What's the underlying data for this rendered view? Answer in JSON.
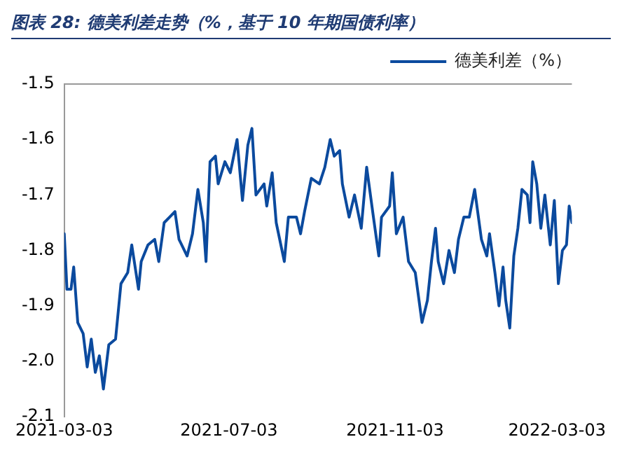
{
  "chart_data": {
    "type": "line",
    "title": "图表 28: 德美利差走势（%，基于 10 年期国债利率）",
    "x": [
      "2021-03-03",
      "2021-03-05",
      "2021-03-08",
      "2021-03-10",
      "2021-03-13",
      "2021-03-17",
      "2021-03-20",
      "2021-03-23",
      "2021-03-26",
      "2021-03-29",
      "2021-04-01",
      "2021-04-05",
      "2021-04-10",
      "2021-04-14",
      "2021-04-19",
      "2021-04-22",
      "2021-04-27",
      "2021-04-29",
      "2021-05-04",
      "2021-05-09",
      "2021-05-12",
      "2021-05-16",
      "2021-05-20",
      "2021-05-24",
      "2021-05-27",
      "2021-06-02",
      "2021-06-06",
      "2021-06-10",
      "2021-06-14",
      "2021-06-16",
      "2021-06-19",
      "2021-06-23",
      "2021-06-25",
      "2021-06-30",
      "2021-07-04",
      "2021-07-09",
      "2021-07-13",
      "2021-07-17",
      "2021-07-20",
      "2021-07-23",
      "2021-07-29",
      "2021-07-31",
      "2021-08-04",
      "2021-08-07",
      "2021-08-13",
      "2021-08-16",
      "2021-08-22",
      "2021-08-25",
      "2021-08-28",
      "2021-09-02",
      "2021-09-08",
      "2021-09-12",
      "2021-09-16",
      "2021-09-19",
      "2021-09-23",
      "2021-09-25",
      "2021-09-30",
      "2021-10-04",
      "2021-10-09",
      "2021-10-13",
      "2021-10-18",
      "2021-10-22",
      "2021-10-24",
      "2021-10-30",
      "2021-11-01",
      "2021-11-04",
      "2021-11-09",
      "2021-11-13",
      "2021-11-18",
      "2021-11-23",
      "2021-11-27",
      "2021-11-30",
      "2021-12-03",
      "2021-12-05",
      "2021-12-09",
      "2021-12-13",
      "2021-12-17",
      "2021-12-20",
      "2021-12-24",
      "2021-12-28",
      "2022-01-01",
      "2022-01-06",
      "2022-01-10",
      "2022-01-12",
      "2022-01-16",
      "2022-01-19",
      "2022-01-22",
      "2022-01-24",
      "2022-01-27",
      "2022-01-30",
      "2022-02-02",
      "2022-02-05",
      "2022-02-09",
      "2022-02-11",
      "2022-02-13",
      "2022-02-16",
      "2022-02-19",
      "2022-02-22",
      "2022-02-26",
      "2022-03-01",
      "2022-03-04",
      "2022-03-07",
      "2022-03-10",
      "2022-03-12",
      "2022-03-14"
    ],
    "series": [
      {
        "name": "德美利差（%）",
        "color": "#0b4a9e",
        "values": [
          -1.77,
          -1.87,
          -1.87,
          -1.83,
          -1.93,
          -1.95,
          -2.01,
          -1.96,
          -2.02,
          -1.99,
          -2.05,
          -1.97,
          -1.96,
          -1.86,
          -1.84,
          -1.79,
          -1.87,
          -1.82,
          -1.79,
          -1.78,
          -1.82,
          -1.75,
          -1.74,
          -1.73,
          -1.78,
          -1.81,
          -1.77,
          -1.69,
          -1.75,
          -1.82,
          -1.64,
          -1.63,
          -1.68,
          -1.64,
          -1.66,
          -1.6,
          -1.71,
          -1.61,
          -1.58,
          -1.7,
          -1.68,
          -1.72,
          -1.66,
          -1.75,
          -1.82,
          -1.74,
          -1.74,
          -1.77,
          -1.73,
          -1.67,
          -1.68,
          -1.65,
          -1.6,
          -1.63,
          -1.62,
          -1.68,
          -1.74,
          -1.7,
          -1.76,
          -1.65,
          -1.74,
          -1.81,
          -1.74,
          -1.72,
          -1.66,
          -1.77,
          -1.74,
          -1.82,
          -1.84,
          -1.93,
          -1.89,
          -1.82,
          -1.76,
          -1.82,
          -1.86,
          -1.8,
          -1.84,
          -1.78,
          -1.74,
          -1.74,
          -1.69,
          -1.78,
          -1.81,
          -1.77,
          -1.84,
          -1.9,
          -1.83,
          -1.89,
          -1.94,
          -1.81,
          -1.76,
          -1.69,
          -1.7,
          -1.75,
          -1.64,
          -1.68,
          -1.76,
          -1.7,
          -1.79,
          -1.71,
          -1.86,
          -1.8,
          -1.79,
          -1.72,
          -1.75
        ]
      }
    ],
    "xlim": [
      "2021-03-03",
      "2022-03-14"
    ],
    "xticks": [
      "2021-03-03",
      "2021-07-03",
      "2021-11-03",
      "2022-03-03"
    ],
    "ylim": [
      -2.1,
      -1.5
    ],
    "yticks": [
      -2.1,
      {
        "value": -2,
        "label": "-2.0"
      },
      -1.9,
      -1.8,
      -1.7,
      -1.6,
      -1.5
    ],
    "ref_lines": [
      {
        "axis": "y",
        "value": -1.5,
        "color": "#999999"
      }
    ],
    "legend": "top",
    "grid": false,
    "marker": "none",
    "line_style": "solid"
  }
}
